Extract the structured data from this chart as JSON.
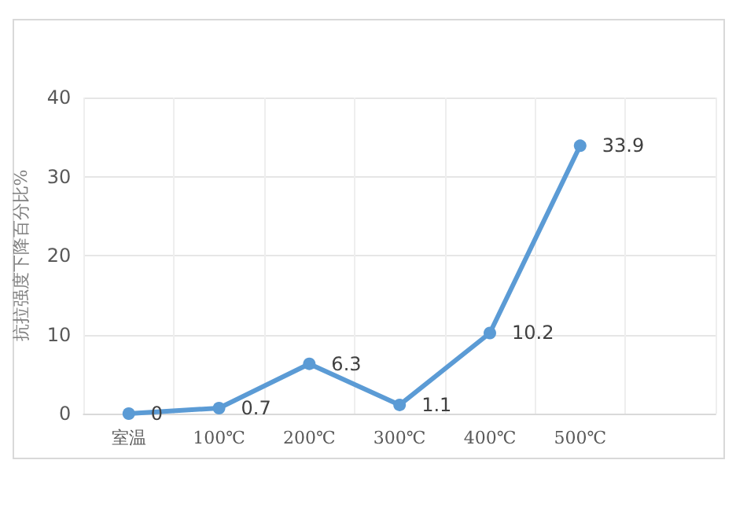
{
  "chart_data": {
    "type": "line",
    "ylabel": "抗拉强度下降百分比%",
    "categories": [
      "室温",
      "100℃",
      "200℃",
      "300℃",
      "400℃",
      "500℃",
      null
    ],
    "series": [
      {
        "color": "#5b9bd5",
        "values": [
          0,
          0.7,
          6.3,
          1.1,
          10.2,
          33.9,
          null
        ]
      }
    ],
    "ylim": [
      0,
      40
    ],
    "yticks": [
      0,
      10,
      20,
      30,
      40
    ],
    "grid": true,
    "data_labels": true,
    "marker": "circle",
    "line_style": "solid"
  }
}
